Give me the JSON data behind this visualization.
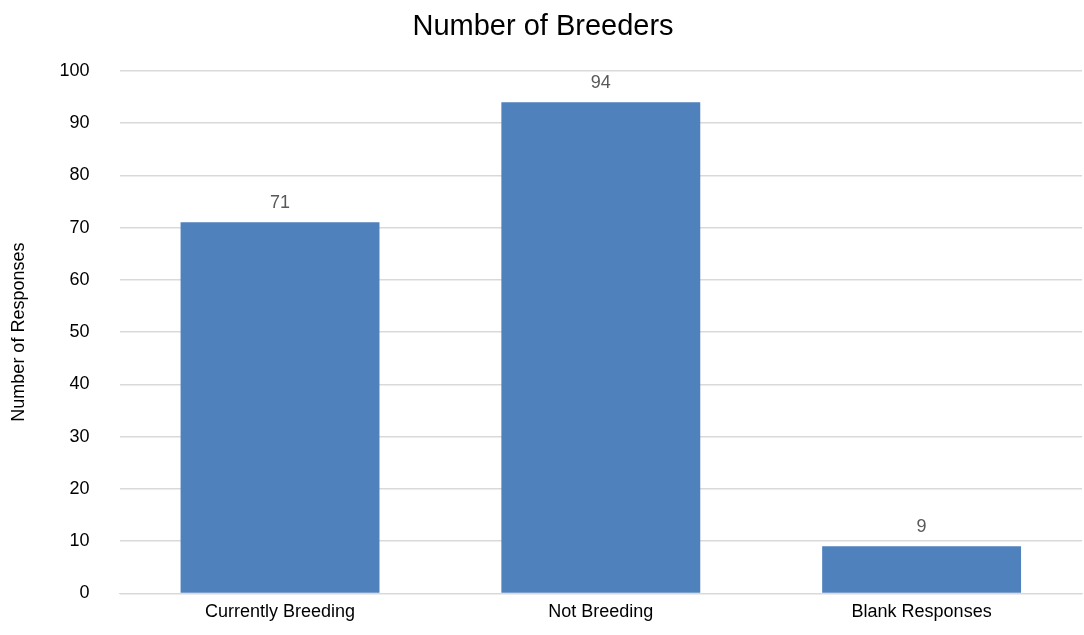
{
  "chart_data": {
    "type": "bar",
    "title": "Number of Breeders",
    "ylabel": "Number of Responses",
    "categories": [
      "Currently Breeding",
      "Not Breeding",
      "Blank Responses"
    ],
    "values": [
      71,
      94,
      9
    ],
    "color": "#4f81bd",
    "ylim": [
      0,
      100
    ],
    "yticks": [
      0,
      10,
      20,
      30,
      40,
      50,
      60,
      70,
      80,
      90,
      100
    ],
    "grid": "y",
    "data_labels": true,
    "legend": false
  }
}
